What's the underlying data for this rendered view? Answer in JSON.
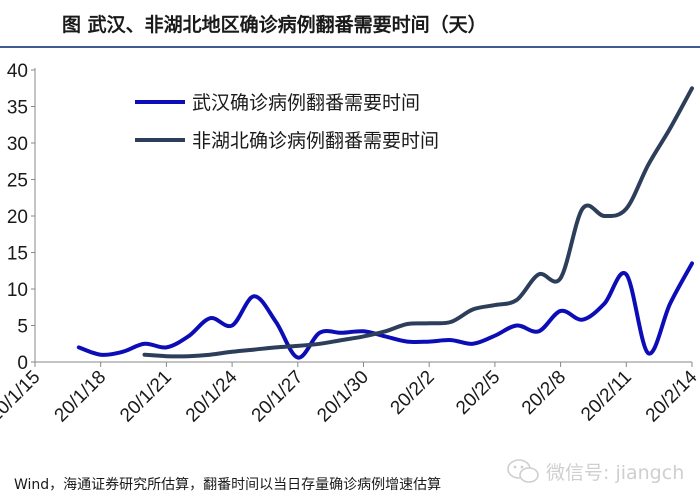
{
  "title": "图    武汉、非湖北地区确诊病例翻番需要时间（天）",
  "source": "Wind，海通证券研究所估算，翻番时间以当日存量确诊病例增速估算",
  "watermark": {
    "text": "微信号: jiangch",
    "icon": "wechat-icon"
  },
  "chart_data": {
    "type": "line",
    "title": "",
    "xlabel": "",
    "ylabel": "",
    "ylim": [
      0,
      40
    ],
    "yticks": [
      0,
      5,
      10,
      15,
      20,
      25,
      30,
      35,
      40
    ],
    "ytick_labels": [
      "0",
      "5",
      "10",
      "15",
      "20",
      "25",
      "30",
      "35",
      "40"
    ],
    "xlim": [
      0,
      30
    ],
    "xticks": [
      0,
      3,
      6,
      9,
      12,
      15,
      18,
      21,
      24,
      27,
      30
    ],
    "xtick_labels": [
      "20/1/15",
      "20/1/18",
      "20/1/21",
      "20/1/24",
      "20/1/27",
      "20/1/30",
      "20/2/2",
      "20/2/5",
      "20/2/8",
      "20/2/11",
      "20/2/14"
    ],
    "legend_position": "top-left",
    "series": [
      {
        "name": "武汉确诊病例翻番需要时间",
        "color": "#0d0db8",
        "x": [
          2,
          3,
          4,
          5,
          6,
          7,
          8,
          9,
          10,
          11,
          12,
          13,
          14,
          15,
          16,
          17,
          18,
          19,
          20,
          21,
          22,
          23,
          24,
          25,
          26,
          27,
          28,
          29,
          30
        ],
        "y": [
          2,
          1,
          1.4,
          2.5,
          2,
          3.5,
          6,
          5,
          9,
          5.5,
          0.6,
          4,
          4,
          4.2,
          3.5,
          2.8,
          2.8,
          3,
          2.5,
          3.6,
          5,
          4.2,
          7,
          5.8,
          8,
          12,
          1.2,
          8,
          13.5
        ]
      },
      {
        "name": "非湖北确诊病例翻番需要时间",
        "color": "#2c3e5a",
        "x": [
          5,
          6,
          7,
          8,
          9,
          10,
          11,
          12,
          13,
          14,
          15,
          16,
          17,
          18,
          19,
          20,
          21,
          22,
          23,
          24,
          25,
          26,
          27,
          28,
          29,
          30
        ],
        "y": [
          1,
          0.8,
          0.8,
          1,
          1.4,
          1.7,
          2,
          2.2,
          2.5,
          3,
          3.5,
          4.2,
          5.2,
          5.3,
          5.5,
          7.2,
          7.8,
          8.5,
          12,
          11.5,
          21,
          20,
          21,
          27,
          32,
          37.5
        ]
      }
    ]
  }
}
